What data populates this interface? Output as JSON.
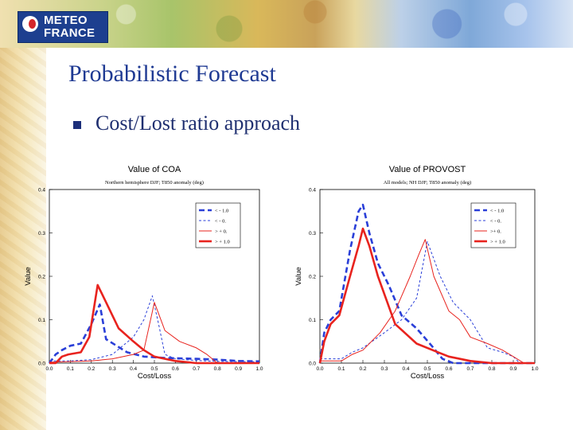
{
  "slide": {
    "logo_line1": "METEO",
    "logo_line2": "FRANCE",
    "title": "Probabilistic Forecast",
    "bullet": "Cost/Lost ratio approach"
  },
  "colors": {
    "title": "#1f3a93",
    "blue": "#2a3fd8",
    "red": "#e8231e"
  },
  "chart_data": [
    {
      "type": "line",
      "title": "Value of COA",
      "subtitle": "Northern hemisphere DJF; T850 anomaly (deg)",
      "xlabel": "Cost/Loss",
      "ylabel": "Value",
      "xlim": [
        0,
        1
      ],
      "ylim": [
        0,
        0.4
      ],
      "xticks": [
        "0.0",
        "0.1",
        "0.2",
        "0.3",
        "0.4",
        "0.5",
        "0.6",
        "0.7",
        "0.8",
        "0.9",
        "1.0"
      ],
      "yticks": [
        "0.0",
        "0.1",
        "0.2",
        "0.3",
        "0.4"
      ],
      "legend_position": "top-right",
      "series": [
        {
          "name": "< - 1.0",
          "color": "#2a3fd8",
          "style": "thick-dashed",
          "points": [
            [
              0.0,
              0.0
            ],
            [
              0.03,
              0.02
            ],
            [
              0.06,
              0.03
            ],
            [
              0.1,
              0.04
            ],
            [
              0.15,
              0.045
            ],
            [
              0.2,
              0.09
            ],
            [
              0.24,
              0.135
            ],
            [
              0.27,
              0.055
            ],
            [
              0.32,
              0.04
            ],
            [
              0.37,
              0.025
            ],
            [
              0.45,
              0.015
            ],
            [
              0.55,
              0.012
            ],
            [
              0.7,
              0.01
            ],
            [
              0.8,
              0.008
            ],
            [
              0.9,
              0.005
            ],
            [
              1.0,
              0.004
            ]
          ]
        },
        {
          "name": "< - 0.",
          "color": "#2a3fd8",
          "style": "thin-dashed",
          "points": [
            [
              0.0,
              0.005
            ],
            [
              0.1,
              0.005
            ],
            [
              0.2,
              0.008
            ],
            [
              0.3,
              0.02
            ],
            [
              0.4,
              0.06
            ],
            [
              0.45,
              0.1
            ],
            [
              0.49,
              0.155
            ],
            [
              0.52,
              0.09
            ],
            [
              0.55,
              0.02
            ],
            [
              0.6,
              0.01
            ],
            [
              0.7,
              0.006
            ],
            [
              0.8,
              0.004
            ],
            [
              1.0,
              0.003
            ]
          ]
        },
        {
          "name": "> + 0.",
          "color": "#e8231e",
          "style": "thin-solid",
          "points": [
            [
              0.0,
              0.002
            ],
            [
              0.2,
              0.005
            ],
            [
              0.3,
              0.01
            ],
            [
              0.4,
              0.02
            ],
            [
              0.45,
              0.03
            ],
            [
              0.5,
              0.14
            ],
            [
              0.55,
              0.075
            ],
            [
              0.62,
              0.05
            ],
            [
              0.7,
              0.035
            ],
            [
              0.75,
              0.02
            ],
            [
              0.8,
              0.0
            ],
            [
              1.0,
              0.0
            ]
          ]
        },
        {
          "name": "> + 1.0",
          "color": "#e8231e",
          "style": "thick-solid",
          "points": [
            [
              0.0,
              0.0
            ],
            [
              0.03,
              0.0
            ],
            [
              0.06,
              0.015
            ],
            [
              0.09,
              0.02
            ],
            [
              0.15,
              0.025
            ],
            [
              0.19,
              0.06
            ],
            [
              0.23,
              0.18
            ],
            [
              0.27,
              0.14
            ],
            [
              0.33,
              0.08
            ],
            [
              0.4,
              0.05
            ],
            [
              0.45,
              0.03
            ],
            [
              0.5,
              0.015
            ],
            [
              0.55,
              0.01
            ],
            [
              0.6,
              0.005
            ],
            [
              0.7,
              0.0
            ],
            [
              1.0,
              0.0
            ]
          ]
        }
      ]
    },
    {
      "type": "line",
      "title": "Value of PROVOST",
      "subtitle": "All models; NH DJF;  T850 anomaly (deg)",
      "xlabel": "Cost/Loss",
      "ylabel": "Value",
      "xlim": [
        0,
        1
      ],
      "ylim": [
        0,
        0.4
      ],
      "xticks": [
        "0.0",
        "0.1",
        "0.2",
        "0.3",
        "0.4",
        "0.5",
        "0.6",
        "0.7",
        "0.8",
        "0.9",
        "1.0"
      ],
      "yticks": [
        "0.0",
        "0.1",
        "0.2",
        "0.3",
        "0.4"
      ],
      "legend_position": "top-right",
      "series": [
        {
          "name": "< - 1.0",
          "color": "#2a3fd8",
          "style": "thick-dashed",
          "points": [
            [
              0.0,
              0.0
            ],
            [
              0.02,
              0.07
            ],
            [
              0.05,
              0.1
            ],
            [
              0.09,
              0.12
            ],
            [
              0.14,
              0.26
            ],
            [
              0.18,
              0.35
            ],
            [
              0.2,
              0.365
            ],
            [
              0.23,
              0.3
            ],
            [
              0.27,
              0.23
            ],
            [
              0.32,
              0.18
            ],
            [
              0.38,
              0.11
            ],
            [
              0.45,
              0.08
            ],
            [
              0.52,
              0.04
            ],
            [
              0.57,
              0.01
            ],
            [
              0.62,
              0.0
            ],
            [
              1.0,
              0.0
            ]
          ]
        },
        {
          "name": "< - 0.",
          "color": "#2a3fd8",
          "style": "thin-dashed",
          "points": [
            [
              0.0,
              0.01
            ],
            [
              0.1,
              0.01
            ],
            [
              0.15,
              0.025
            ],
            [
              0.2,
              0.035
            ],
            [
              0.3,
              0.07
            ],
            [
              0.38,
              0.1
            ],
            [
              0.45,
              0.15
            ],
            [
              0.5,
              0.28
            ],
            [
              0.56,
              0.2
            ],
            [
              0.62,
              0.14
            ],
            [
              0.7,
              0.1
            ],
            [
              0.78,
              0.035
            ],
            [
              0.85,
              0.025
            ],
            [
              0.9,
              0.015
            ],
            [
              0.93,
              0.0
            ],
            [
              1.0,
              0.0
            ]
          ]
        },
        {
          "name": ">+ 0.",
          "color": "#e8231e",
          "style": "thin-solid",
          "points": [
            [
              0.0,
              0.005
            ],
            [
              0.1,
              0.005
            ],
            [
              0.15,
              0.02
            ],
            [
              0.2,
              0.03
            ],
            [
              0.28,
              0.07
            ],
            [
              0.35,
              0.12
            ],
            [
              0.42,
              0.2
            ],
            [
              0.46,
              0.25
            ],
            [
              0.49,
              0.285
            ],
            [
              0.53,
              0.2
            ],
            [
              0.6,
              0.12
            ],
            [
              0.65,
              0.1
            ],
            [
              0.7,
              0.06
            ],
            [
              0.78,
              0.045
            ],
            [
              0.85,
              0.03
            ],
            [
              0.9,
              0.015
            ],
            [
              0.95,
              0.0
            ],
            [
              1.0,
              0.0
            ]
          ]
        },
        {
          "name": "> + 1.0",
          "color": "#e8231e",
          "style": "thick-solid",
          "points": [
            [
              0.0,
              0.0
            ],
            [
              0.02,
              0.05
            ],
            [
              0.05,
              0.09
            ],
            [
              0.09,
              0.11
            ],
            [
              0.14,
              0.2
            ],
            [
              0.18,
              0.27
            ],
            [
              0.2,
              0.31
            ],
            [
              0.23,
              0.27
            ],
            [
              0.27,
              0.2
            ],
            [
              0.35,
              0.09
            ],
            [
              0.45,
              0.045
            ],
            [
              0.55,
              0.025
            ],
            [
              0.6,
              0.015
            ],
            [
              0.7,
              0.005
            ],
            [
              0.8,
              0.0
            ],
            [
              1.0,
              0.0
            ]
          ]
        }
      ]
    }
  ]
}
